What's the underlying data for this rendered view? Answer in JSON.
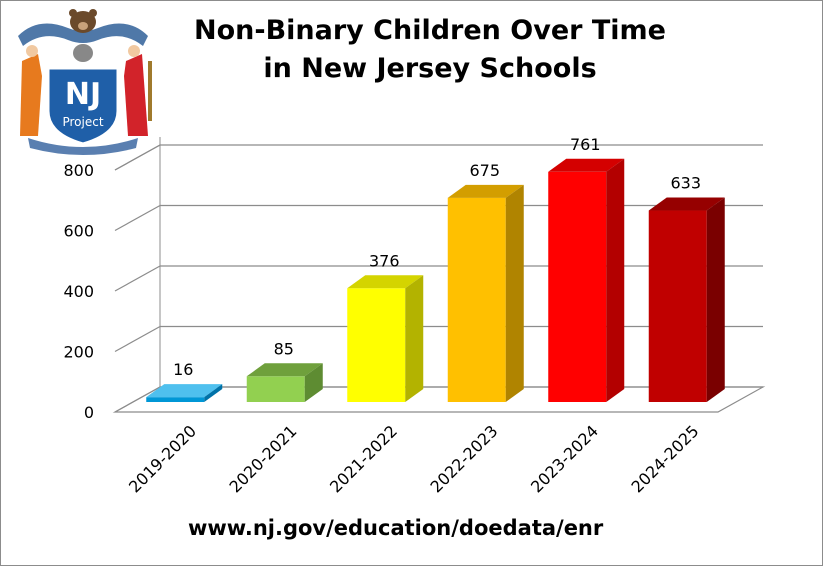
{
  "title_line1": "Non-Binary Children Over Time",
  "title_line2": "in New Jersey Schools",
  "source": "www.nj.gov/education/doedata/enr",
  "logo": {
    "text": "NJ",
    "subtext": "Project",
    "icon": "nj-project-seal-logo"
  },
  "chart_data": {
    "type": "bar",
    "title": "Non-Binary Children Over Time in New Jersey Schools",
    "categories": [
      "2019-2020",
      "2020-2021",
      "2021-2022",
      "2022-2023",
      "2023-2024",
      "2024-2025"
    ],
    "values": [
      16,
      85,
      376,
      675,
      761,
      633
    ],
    "ylim": [
      0,
      800
    ],
    "yticks": [
      0,
      200,
      400,
      600,
      800
    ],
    "grid": true,
    "legend": "none",
    "bar_colors": [
      {
        "front": "#0097d6",
        "top": "#4fc0ee",
        "side": "#0072a8"
      },
      {
        "front": "#92d050",
        "top": "#6fa03c",
        "side": "#5e8c32"
      },
      {
        "front": "#ffff00",
        "top": "#d4d400",
        "side": "#b3b300"
      },
      {
        "front": "#ffc000",
        "top": "#d39e00",
        "side": "#b08400"
      },
      {
        "front": "#ff0000",
        "top": "#d40000",
        "side": "#b30000"
      },
      {
        "front": "#c00000",
        "top": "#960000",
        "side": "#7a0000"
      }
    ]
  }
}
